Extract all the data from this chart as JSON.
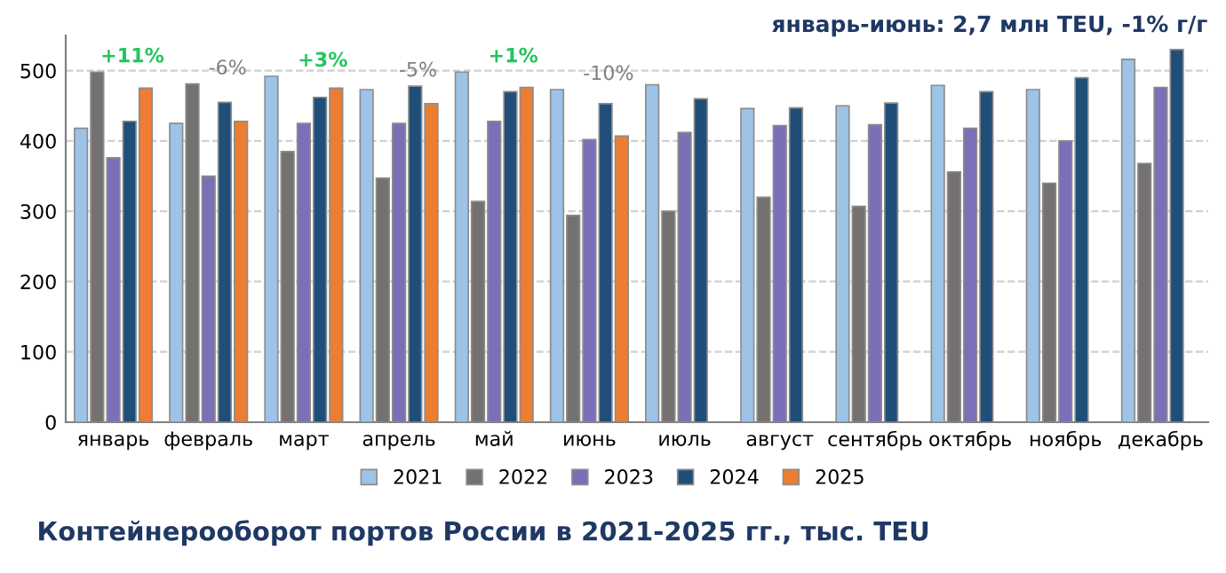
{
  "chart_data": {
    "type": "bar",
    "title": "Контейнерооборот портов России в 2021-2025 гг., тыс. TEU",
    "subtitle": "январь-июнь: 2,7 млн TEU, -1% г/г",
    "categories": [
      "январь",
      "февраль",
      "март",
      "апрель",
      "май",
      "июнь",
      "июль",
      "август",
      "сентябрь",
      "октябрь",
      "ноябрь",
      "декабрь"
    ],
    "series": [
      {
        "name": "2021",
        "color": "#9dc3e6",
        "values": [
          418,
          425,
          492,
          473,
          498,
          473,
          480,
          446,
          450,
          479,
          473,
          516
        ]
      },
      {
        "name": "2022",
        "color": "#767171",
        "values": [
          498,
          481,
          385,
          347,
          314,
          294,
          300,
          320,
          307,
          356,
          340,
          368
        ]
      },
      {
        "name": "2023",
        "color": "#7b6fb8",
        "values": [
          376,
          350,
          425,
          425,
          428,
          402,
          412,
          422,
          423,
          418,
          400,
          476
        ]
      },
      {
        "name": "2024",
        "color": "#1f4e79",
        "values": [
          428,
          455,
          462,
          478,
          470,
          453,
          460,
          447,
          454,
          470,
          490,
          530
        ]
      },
      {
        "name": "2025",
        "color": "#ed7d31",
        "values": [
          475,
          428,
          475,
          453,
          476,
          407,
          null,
          null,
          null,
          null,
          null,
          null
        ]
      }
    ],
    "annotations": [
      "+11%",
      "-6%",
      "+3%",
      "-5%",
      "+1%",
      "-10%"
    ],
    "ylim": [
      0,
      550
    ],
    "yticks": [
      0,
      100,
      200,
      300,
      400,
      500
    ],
    "grid": "y",
    "legend": "bottom"
  }
}
